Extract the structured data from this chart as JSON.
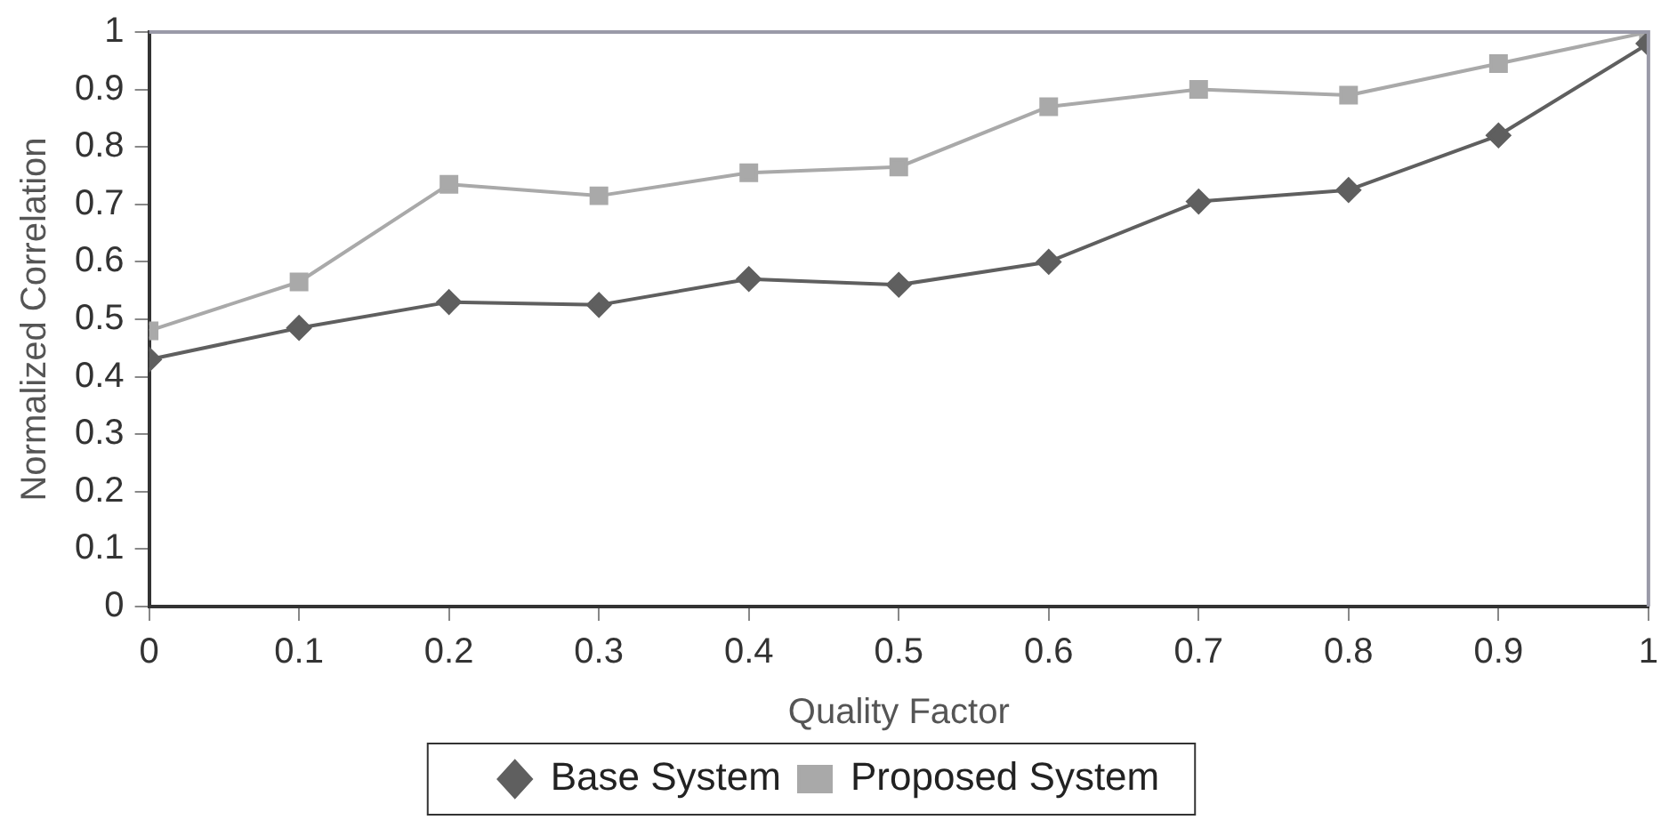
{
  "chart_data": {
    "type": "line",
    "xlabel": "Quality Factor",
    "ylabel": "Normalized Correlation",
    "x": [
      0,
      0.1,
      0.2,
      0.3,
      0.4,
      0.5,
      0.6,
      0.7,
      0.8,
      0.9,
      1
    ],
    "series": [
      {
        "name": "Base System",
        "color": "#5f5f5f",
        "marker": "diamond",
        "values": [
          0.43,
          0.485,
          0.53,
          0.525,
          0.57,
          0.56,
          0.6,
          0.705,
          0.725,
          0.82,
          0.98
        ]
      },
      {
        "name": "Proposed System",
        "color": "#a9a9a9",
        "marker": "square",
        "values": [
          0.48,
          0.565,
          0.735,
          0.715,
          0.755,
          0.765,
          0.87,
          0.9,
          0.89,
          0.945,
          1.0
        ]
      }
    ],
    "xlim": [
      0,
      1
    ],
    "xticks": [
      0,
      0.1,
      0.2,
      0.3,
      0.4,
      0.5,
      0.6,
      0.7,
      0.8,
      0.9,
      1
    ],
    "ylim": [
      0,
      1
    ],
    "yticks": [
      0,
      0.1,
      0.2,
      0.3,
      0.4,
      0.5,
      0.6,
      0.7,
      0.8,
      0.9,
      1
    ],
    "grid": false,
    "legend": "bottom",
    "line_style": "solid"
  }
}
